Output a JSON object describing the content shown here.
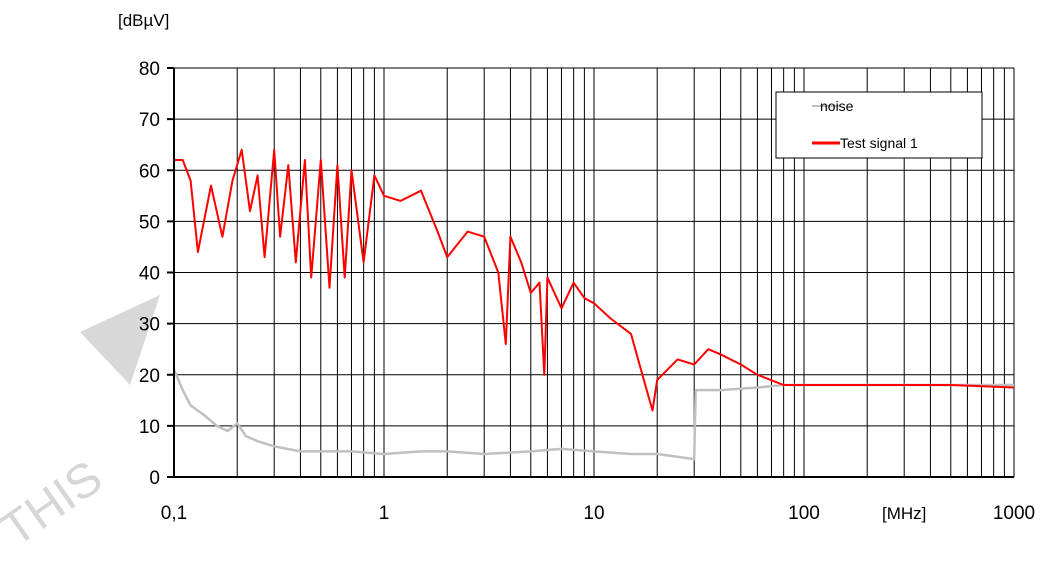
{
  "chart_data": {
    "type": "line",
    "ylabel": "[dBµV]",
    "xlabel": "[MHz]",
    "x_scale": "log",
    "xlim": [
      0.1,
      1000
    ],
    "ylim": [
      0,
      80
    ],
    "y_ticks": [
      0,
      10,
      20,
      30,
      40,
      50,
      60,
      70,
      80
    ],
    "x_tick_labels": [
      {
        "value": 0.1,
        "label": "0,1"
      },
      {
        "value": 1,
        "label": "1"
      },
      {
        "value": 10,
        "label": "10"
      },
      {
        "value": 100,
        "label": "100"
      },
      {
        "value": 1000,
        "label": "1000"
      }
    ],
    "grid": true,
    "legend_position": "top-right",
    "colors": {
      "noise": "#c0c0c0",
      "test_signal": "#ff0000",
      "grid": "#000000"
    },
    "series": [
      {
        "name": "noise",
        "color": "#c0c0c0",
        "x": [
          0.1,
          0.11,
          0.12,
          0.14,
          0.16,
          0.18,
          0.2,
          0.22,
          0.25,
          0.3,
          0.4,
          0.5,
          0.7,
          1,
          1.5,
          2,
          3,
          5,
          7,
          10,
          15,
          20,
          30,
          30.5,
          40,
          60,
          80,
          100,
          200,
          500,
          1000
        ],
        "y": [
          21,
          17,
          14,
          12,
          10,
          9,
          10.5,
          8,
          7,
          6,
          5,
          5,
          5,
          4.5,
          5,
          5,
          4.5,
          5,
          5.5,
          5,
          4.5,
          4.5,
          3.5,
          17,
          17,
          17.5,
          18,
          18,
          18,
          18,
          18
        ]
      },
      {
        "name": "Test signal 1",
        "color": "#ff0000",
        "x": [
          0.1,
          0.11,
          0.12,
          0.13,
          0.15,
          0.17,
          0.19,
          0.21,
          0.23,
          0.25,
          0.27,
          0.3,
          0.32,
          0.35,
          0.38,
          0.42,
          0.45,
          0.5,
          0.55,
          0.6,
          0.65,
          0.7,
          0.8,
          0.9,
          1,
          1.2,
          1.5,
          1.8,
          2,
          2.5,
          3,
          3.5,
          3.8,
          4,
          4.5,
          5,
          5.5,
          5.8,
          6,
          7,
          8,
          9,
          10,
          12,
          15,
          17,
          19,
          20,
          25,
          30,
          35,
          40,
          50,
          60,
          80,
          100,
          200,
          500,
          1000
        ],
        "y": [
          62,
          62,
          58,
          44,
          57,
          47,
          58,
          64,
          52,
          59,
          43,
          64,
          47,
          61,
          42,
          62,
          39,
          62,
          37,
          61,
          39,
          60,
          42,
          59,
          55,
          54,
          56,
          48,
          43,
          48,
          47,
          40,
          26,
          47,
          42,
          36,
          38,
          20,
          39,
          33,
          38,
          35,
          34,
          31,
          28,
          20,
          13,
          19,
          23,
          22,
          25,
          24,
          22,
          20,
          18,
          18,
          18,
          18,
          17.5
        ]
      }
    ],
    "watermark": "THIS"
  }
}
